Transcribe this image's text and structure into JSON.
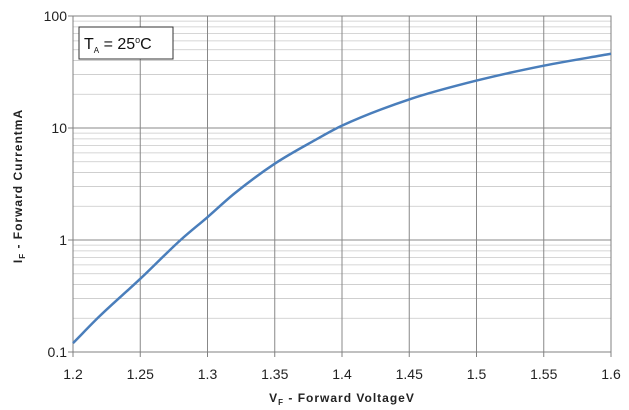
{
  "chart_data": {
    "type": "line",
    "annotation": {
      "main": "T",
      "sub": "A",
      "rest": " = 25",
      "sup": "o",
      "unit": "C"
    },
    "xlabel": {
      "main": "V",
      "sub": "F",
      "rest": " - Forward Voltage",
      "unit": "V"
    },
    "ylabel": {
      "main": "I",
      "sub": "F",
      "rest": " - Forward Current",
      "unit": "mA"
    },
    "xlim": [
      1.2,
      1.6
    ],
    "ylim": [
      0.1,
      100
    ],
    "yscale": "log",
    "grid": true,
    "x_ticks": [
      "1.2",
      "1.25",
      "1.3",
      "1.35",
      "1.4",
      "1.45",
      "1.5",
      "1.55",
      "1.6"
    ],
    "y_ticks": [
      "0.1",
      "1",
      "10",
      "100"
    ],
    "series": [
      {
        "color": "#4a7ebb",
        "x": [
          1.2,
          1.22,
          1.25,
          1.28,
          1.3,
          1.32,
          1.35,
          1.38,
          1.4,
          1.45,
          1.5,
          1.55,
          1.6
        ],
        "y": [
          0.12,
          0.21,
          0.45,
          1.0,
          1.6,
          2.6,
          4.8,
          7.8,
          10.5,
          18.0,
          26.5,
          36.0,
          46.0
        ]
      }
    ]
  }
}
